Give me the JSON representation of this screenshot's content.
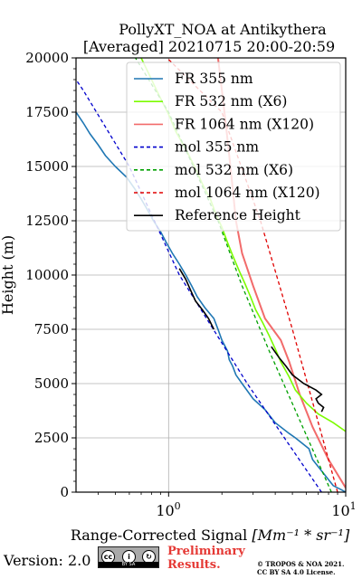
{
  "chart_data": {
    "type": "line",
    "title": "PollyXT_NOA at Antikythera",
    "subtitle": "[Averaged] 20210715 20:00-20:59",
    "xlabel": "Range-Corrected Signal [Mm^-1 * sr^-1]",
    "ylabel": "Height (m)",
    "xscale": "log",
    "xlim": [
      0.3,
      10
    ],
    "ylim": [
      0,
      20000
    ],
    "xticks": [
      {
        "value": 1,
        "label": "10^0"
      },
      {
        "value": 10,
        "label": "10^1"
      }
    ],
    "yticks": [
      0,
      2500,
      5000,
      7500,
      10000,
      12500,
      15000,
      17500,
      20000
    ],
    "grid": true,
    "legend_position": "top-right",
    "series": [
      {
        "name": "FR 355 nm",
        "color": "#1f77b4",
        "style": "solid",
        "points": [
          [
            10,
            0
          ],
          [
            9.5,
            100
          ],
          [
            8.5,
            300
          ],
          [
            6.5,
            1500
          ],
          [
            6.2,
            2000
          ],
          [
            5.2,
            2500
          ],
          [
            4.8,
            2700
          ],
          [
            4.0,
            3200
          ],
          [
            3.5,
            3800
          ],
          [
            3.0,
            4300
          ],
          [
            2.6,
            5000
          ],
          [
            2.4,
            5400
          ],
          [
            2.3,
            5800
          ],
          [
            2.2,
            6100
          ],
          [
            2.15,
            6500
          ],
          [
            2.0,
            7000
          ],
          [
            1.9,
            7500
          ],
          [
            1.8,
            8000
          ],
          [
            1.6,
            8500
          ],
          [
            1.45,
            9000
          ],
          [
            1.35,
            9500
          ],
          [
            1.25,
            10000
          ],
          [
            1.15,
            10500
          ],
          [
            1.05,
            11000
          ],
          [
            0.97,
            11500
          ],
          [
            0.9,
            12000
          ],
          [
            0.82,
            12500
          ],
          [
            0.76,
            13000
          ],
          [
            0.7,
            13500
          ],
          [
            0.64,
            14000
          ],
          [
            0.58,
            14500
          ],
          [
            0.5,
            15000
          ],
          [
            0.44,
            15500
          ],
          [
            0.4,
            16000
          ],
          [
            0.36,
            16500
          ],
          [
            0.33,
            17000
          ],
          [
            0.3,
            17500
          ]
        ]
      },
      {
        "name": "FR 532 nm (X6)",
        "color": "#7cfc00",
        "style": "solid",
        "points": [
          [
            10,
            2800
          ],
          [
            8.5,
            3200
          ],
          [
            7.0,
            3600
          ],
          [
            6.0,
            4100
          ],
          [
            5.2,
            4700
          ],
          [
            4.8,
            5300
          ],
          [
            4.3,
            6000
          ],
          [
            4.0,
            6600
          ],
          [
            3.7,
            7200
          ],
          [
            3.4,
            7800
          ],
          [
            3.1,
            8400
          ],
          [
            2.9,
            9000
          ],
          [
            2.7,
            9600
          ],
          [
            2.5,
            10200
          ],
          [
            2.3,
            10900
          ],
          [
            2.15,
            11500
          ],
          [
            2.0,
            12200
          ],
          [
            1.85,
            12800
          ],
          [
            1.72,
            13500
          ],
          [
            1.55,
            14200
          ],
          [
            1.4,
            15000
          ],
          [
            1.25,
            15800
          ],
          [
            1.1,
            16600
          ],
          [
            1.0,
            17400
          ],
          [
            0.88,
            18300
          ],
          [
            0.78,
            19200
          ],
          [
            0.7,
            20000
          ]
        ]
      },
      {
        "name": "FR 1064 nm (X120)",
        "color": "#f26b6b",
        "style": "solid",
        "points": [
          [
            10,
            200
          ],
          [
            8,
            1500
          ],
          [
            6.5,
            3000
          ],
          [
            5.5,
            4500
          ],
          [
            4.8,
            6000
          ],
          [
            4.3,
            7000
          ],
          [
            3.5,
            8000
          ],
          [
            3.0,
            9500
          ],
          [
            2.6,
            11000
          ],
          [
            2.4,
            12500
          ],
          [
            2.3,
            14000
          ],
          [
            2.2,
            15500
          ],
          [
            2.1,
            17000
          ],
          [
            2.0,
            18500
          ],
          [
            1.9,
            20000
          ]
        ]
      },
      {
        "name": "mol 355 nm",
        "color": "#0000cc",
        "style": "dashed",
        "points": [
          [
            7.3,
            0
          ],
          [
            2.78,
            5000
          ],
          [
            1.15,
            10000
          ],
          [
            0.6,
            15000
          ],
          [
            0.33,
            18500
          ],
          [
            0.3,
            19000
          ]
        ]
      },
      {
        "name": "mol 532 nm (X6)",
        "color": "#00a000",
        "style": "dashed",
        "points": [
          [
            8.3,
            0
          ],
          [
            3.7,
            6500
          ],
          [
            2.6,
            9500
          ],
          [
            1.9,
            12500
          ],
          [
            1.0,
            17500
          ],
          [
            0.65,
            20000
          ]
        ]
      },
      {
        "name": "mol 1064 nm (X120)",
        "color": "#e00000",
        "style": "dashed",
        "points": [
          [
            9.0,
            0
          ],
          [
            5.0,
            7500
          ],
          [
            3.3,
            12500
          ],
          [
            2.0,
            17500
          ],
          [
            0.98,
            20000
          ]
        ]
      },
      {
        "name": "Reference Height",
        "color": "#000000",
        "style": "solid",
        "segments": [
          [
            [
              1.15,
              10300
            ],
            [
              1.25,
              9800
            ],
            [
              1.33,
              9300
            ],
            [
              1.42,
              8800
            ],
            [
              1.55,
              8400
            ],
            [
              1.68,
              8000
            ],
            [
              1.8,
              7500
            ]
          ],
          [
            [
              3.8,
              6700
            ],
            [
              4.2,
              6200
            ],
            [
              4.6,
              5800
            ],
            [
              5.0,
              5400
            ],
            [
              5.8,
              5000
            ],
            [
              6.8,
              4700
            ],
            [
              7.3,
              4500
            ],
            [
              6.8,
              4300
            ],
            [
              7.0,
              4100
            ],
            [
              7.5,
              3900
            ],
            [
              7.3,
              3700
            ]
          ]
        ]
      }
    ]
  },
  "legend": [
    {
      "label": "FR 355 nm",
      "color": "#1f77b4",
      "style": "solid"
    },
    {
      "label": "FR 532 nm (X6)",
      "color": "#7cfc00",
      "style": "solid"
    },
    {
      "label": "FR 1064 nm (X120)",
      "color": "#f26b6b",
      "style": "solid"
    },
    {
      "label": "mol 355 nm",
      "color": "#0000cc",
      "style": "dashed"
    },
    {
      "label": "mol 532 nm (X6)",
      "color": "#00a000",
      "style": "dashed"
    },
    {
      "label": "mol 1064 nm (X120)",
      "color": "#e00000",
      "style": "dashed"
    },
    {
      "label": "Reference Height",
      "color": "#000000",
      "style": "solid"
    }
  ],
  "labels": {
    "title": "PollyXT_NOA at Antikythera",
    "subtitle": "[Averaged] 20210715 20:00-20:59",
    "ylabel": "Height (m)",
    "xlabel_text": "Range-Corrected Signal ",
    "xlabel_unit": "[Mm⁻¹ * sr⁻¹]",
    "xtick_base": "10",
    "xtick_exp_1": "0",
    "xtick_exp_2": "1"
  },
  "footer": {
    "version": "Version: 2.0",
    "license_badge_label": "BY  SA",
    "preliminary": "Preliminary",
    "results": "Results.",
    "copyright_line1": "© TROPOS & NOA 2021.",
    "copyright_line2": "CC BY SA 4.0 License."
  }
}
